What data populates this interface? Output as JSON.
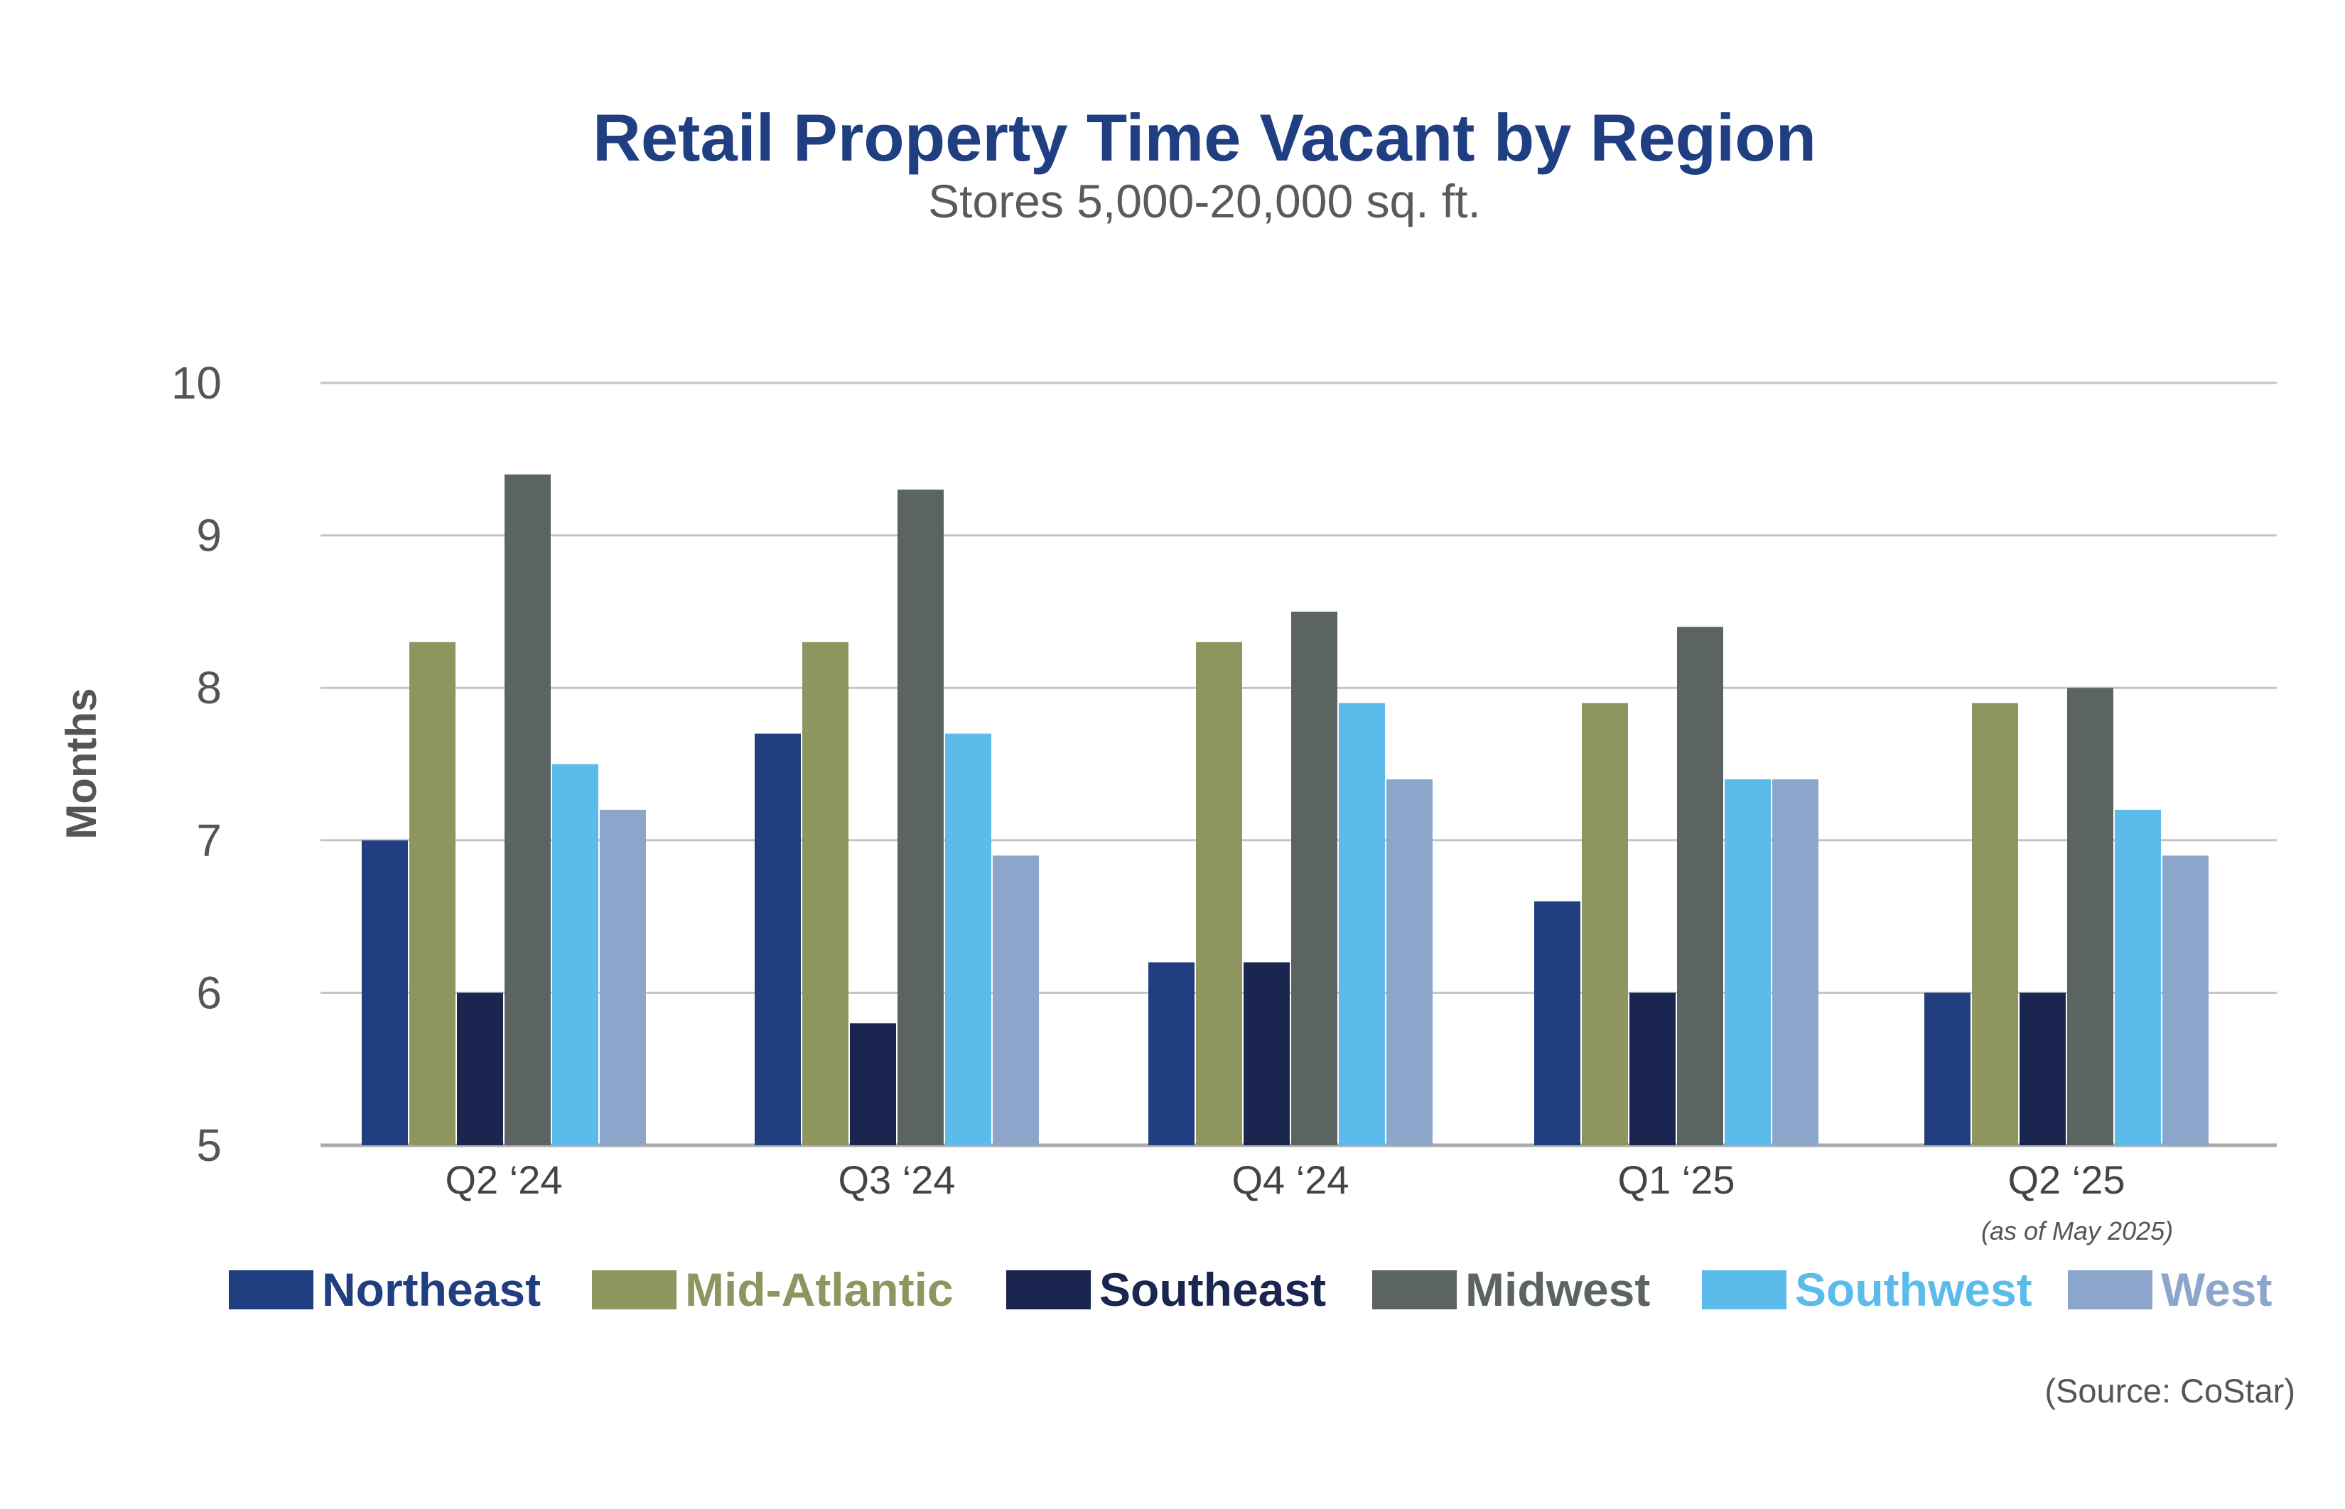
{
  "chart_data": {
    "type": "bar",
    "title": "Retail Property Time Vacant by Region",
    "subtitle": "Stores 5,000-20,000 sq. ft.",
    "xlabel": "",
    "ylabel": "Months",
    "ylim": [
      5,
      10
    ],
    "yticks": [
      "5",
      "6",
      "7",
      "8",
      "9",
      "10"
    ],
    "grid": true,
    "legend_position": "bottom",
    "categories": [
      "Q2 ‘24",
      "Q3 ‘24",
      "Q4 ‘24",
      "Q1 ‘25",
      "Q2 ‘25"
    ],
    "category_note": "(as of May 2025)",
    "series": [
      {
        "name": "Northeast",
        "color": "#213f80",
        "values": [
          7.0,
          7.7,
          6.2,
          6.6,
          6.0
        ]
      },
      {
        "name": "Mid-Atlantic",
        "color": "#8f955f",
        "values": [
          8.3,
          8.3,
          8.3,
          7.9,
          7.9
        ]
      },
      {
        "name": "Southeast",
        "color": "#1a2550",
        "values": [
          6.0,
          5.8,
          6.2,
          6.0,
          6.0
        ]
      },
      {
        "name": "Midwest",
        "color": "#5b6461",
        "values": [
          9.4,
          9.3,
          8.5,
          8.4,
          8.0
        ]
      },
      {
        "name": "Southwest",
        "color": "#5bbbea",
        "values": [
          7.5,
          7.7,
          7.9,
          7.4,
          7.2
        ]
      },
      {
        "name": "West",
        "color": "#8ba5cb",
        "values": [
          7.2,
          6.9,
          7.4,
          7.4,
          6.9
        ]
      }
    ],
    "source": "(Source: CoStar)"
  }
}
